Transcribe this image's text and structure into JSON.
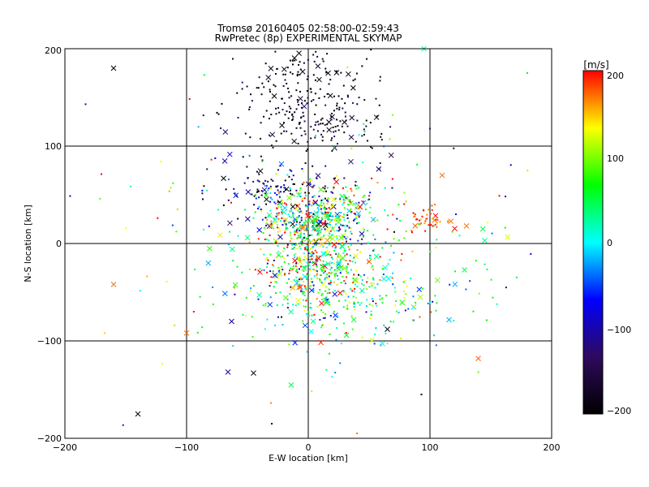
{
  "chart_data": {
    "type": "scatter",
    "title": "Tromsø 20160405 02:58:00-02:59:43",
    "subtitle": "RwPretec (8p) EXPERIMENTAL SKYMAP",
    "xlabel": "E-W location [km]",
    "ylabel": "N-S location [km]",
    "xlim": [
      -200,
      200
    ],
    "ylim": [
      -200,
      200
    ],
    "xticks": [
      "−200",
      "−100",
      "0",
      "100",
      "200"
    ],
    "yticks": [
      "−200",
      "−100",
      "0",
      "100",
      "200"
    ],
    "grid": true,
    "colorbar": {
      "label": "[m/s]",
      "min": -200,
      "max": 200,
      "ticks": [
        "200",
        "100",
        "0",
        "−100",
        "−200"
      ],
      "palette": [
        "#000000",
        "#2e0a5e",
        "#0000ff",
        "#00ffff",
        "#00ff00",
        "#ffff00",
        "#ff0000"
      ]
    },
    "marker_styles": [
      "dot",
      "cross"
    ],
    "density_clusters": [
      {
        "x": 0,
        "y": 160,
        "sx": 25,
        "sy": 30,
        "n": 180,
        "vmean": -190,
        "vsd": 15
      },
      {
        "x": 10,
        "y": 120,
        "sx": 35,
        "sy": 18,
        "n": 110,
        "vmean": -170,
        "vsd": 30
      },
      {
        "x": -25,
        "y": 55,
        "sx": 30,
        "sy": 12,
        "n": 130,
        "vmean": -150,
        "vsd": 60
      },
      {
        "x": 15,
        "y": 40,
        "sx": 30,
        "sy": 12,
        "n": 160,
        "vmean": 80,
        "vsd": 90
      },
      {
        "x": 5,
        "y": 20,
        "sx": 22,
        "sy": 10,
        "n": 300,
        "vmean": 40,
        "vsd": 90
      },
      {
        "x": 5,
        "y": -20,
        "sx": 22,
        "sy": 18,
        "n": 320,
        "vmean": 90,
        "vsd": 100
      },
      {
        "x": 25,
        "y": -55,
        "sx": 40,
        "sy": 22,
        "n": 200,
        "vmean": 20,
        "vsd": 60
      },
      {
        "x": 60,
        "y": -40,
        "sx": 40,
        "sy": 30,
        "n": 90,
        "vmean": 80,
        "vsd": 60
      },
      {
        "x": 100,
        "y": 25,
        "sx": 9,
        "sy": 8,
        "n": 45,
        "vmean": 185,
        "vsd": 20
      },
      {
        "x": 0,
        "y": 0,
        "sx": 80,
        "sy": 80,
        "n": 160,
        "vmean": 60,
        "vsd": 110
      }
    ],
    "notable_points": [
      {
        "x": -160,
        "y": 180,
        "v": -200,
        "marker": "cross"
      },
      {
        "x": -183,
        "y": 143,
        "v": -100,
        "marker": "dot"
      },
      {
        "x": -160,
        "y": -42,
        "v": 170,
        "marker": "cross"
      },
      {
        "x": -140,
        "y": -175,
        "v": -200,
        "marker": "cross"
      },
      {
        "x": -100,
        "y": -92,
        "v": 170,
        "marker": "cross"
      },
      {
        "x": -63,
        "y": -80,
        "v": -100,
        "marker": "cross"
      },
      {
        "x": -45,
        "y": -133,
        "v": -180,
        "marker": "cross"
      },
      {
        "x": -66,
        "y": -132,
        "v": -100,
        "marker": "cross"
      },
      {
        "x": 65,
        "y": -88,
        "v": -200,
        "marker": "cross"
      },
      {
        "x": 93,
        "y": -155,
        "v": -200,
        "marker": "dot"
      },
      {
        "x": 95,
        "y": 200,
        "v": 20,
        "marker": "cross"
      },
      {
        "x": 110,
        "y": 70,
        "v": 170,
        "marker": "cross"
      },
      {
        "x": 145,
        "y": 3,
        "v": 30,
        "marker": "cross"
      },
      {
        "x": 130,
        "y": 18,
        "v": 170,
        "marker": "cross"
      },
      {
        "x": 180,
        "y": 175,
        "v": 60,
        "marker": "dot"
      },
      {
        "x": -30,
        "y": -185,
        "v": -200,
        "marker": "dot"
      },
      {
        "x": 40,
        "y": -195,
        "v": 170,
        "marker": "dot"
      }
    ]
  }
}
